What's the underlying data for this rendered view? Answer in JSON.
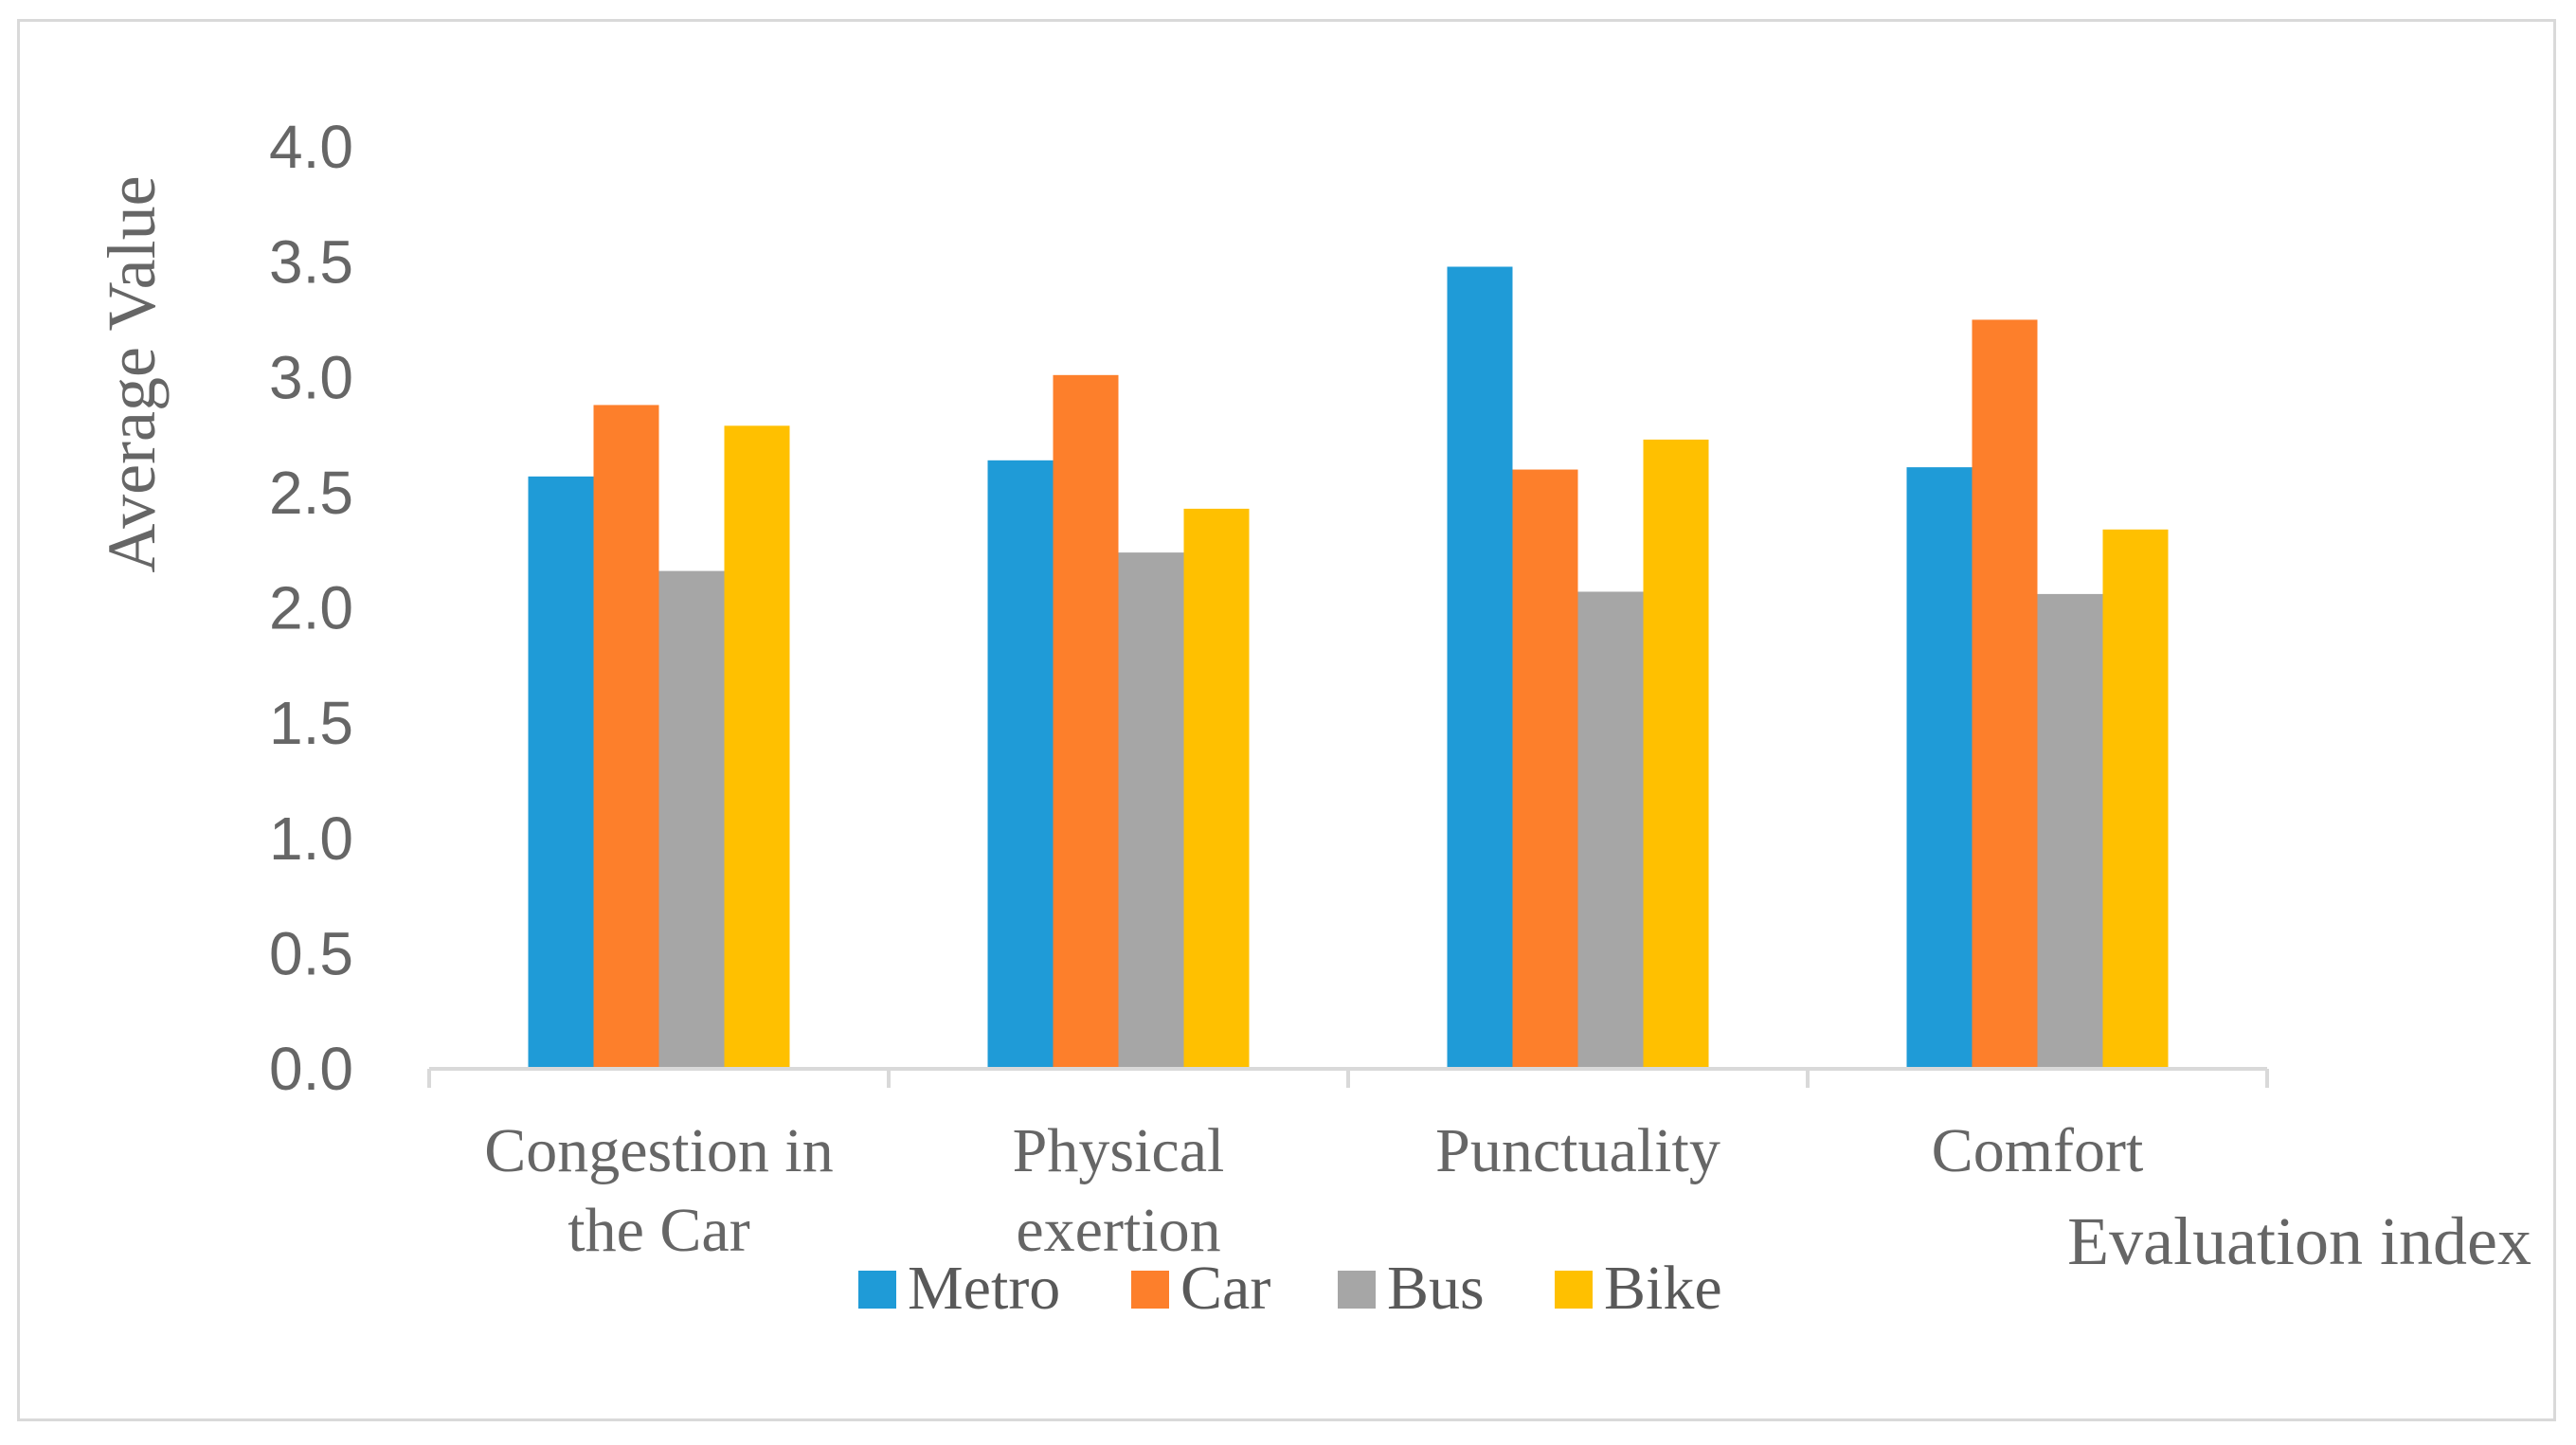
{
  "chart_data": {
    "type": "bar",
    "title": "",
    "xlabel": "Evaluation index",
    "ylabel": "Average Value",
    "ylim": [
      0,
      4
    ],
    "yticks": [
      "0.0",
      "0.5",
      "1.0",
      "1.5",
      "2.0",
      "2.5",
      "3.0",
      "3.5",
      "4.0"
    ],
    "categories": [
      [
        "Congestion in",
        "the Car"
      ],
      [
        "Physical",
        "exertion"
      ],
      [
        "Punctuality"
      ],
      [
        "Comfort"
      ]
    ],
    "series": [
      {
        "name": "Metro",
        "color": "#1f9bd7",
        "values": [
          2.57,
          2.64,
          3.48,
          2.61
        ]
      },
      {
        "name": "Car",
        "color": "#fd7f2b",
        "values": [
          2.88,
          3.01,
          2.6,
          3.25
        ]
      },
      {
        "name": "Bus",
        "color": "#a6a6a6",
        "values": [
          2.16,
          2.24,
          2.07,
          2.06
        ]
      },
      {
        "name": "Bike",
        "color": "#ffc000",
        "values": [
          2.79,
          2.43,
          2.73,
          2.34
        ]
      }
    ],
    "grid": false,
    "legend_position": "bottom"
  }
}
